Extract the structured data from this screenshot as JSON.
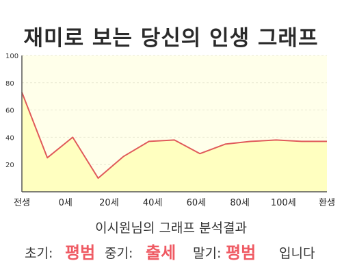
{
  "title": "재미로 보는 당신의 인생 그래프",
  "summary": "이시원님의 그래프 분석결과",
  "verdict": {
    "early_label": "초기:",
    "early_value": "평범",
    "middle_label": "중기:",
    "middle_value": "출세",
    "late_label": "말기:",
    "late_value": "평범",
    "suffix": "입니다"
  },
  "colors": {
    "line": "#e05a5a",
    "fill": "#ffffc0",
    "plot_bg": "#ffffea",
    "accent": "#ef5a63"
  },
  "chart_data": {
    "type": "area",
    "title": "재미로 보는 당신의 인생 그래프",
    "xlabel": "",
    "ylabel": "",
    "ylim": [
      0,
      100
    ],
    "yticks": [
      20,
      40,
      60,
      80,
      100
    ],
    "x_tick_labels": [
      "전생",
      "0세",
      "20세",
      "40세",
      "60세",
      "80세",
      "100세",
      "환생"
    ],
    "grid": true,
    "series": [
      {
        "values": [
          73,
          25,
          40,
          10,
          26,
          37,
          38,
          28,
          35,
          37,
          38,
          37,
          37
        ]
      }
    ]
  }
}
